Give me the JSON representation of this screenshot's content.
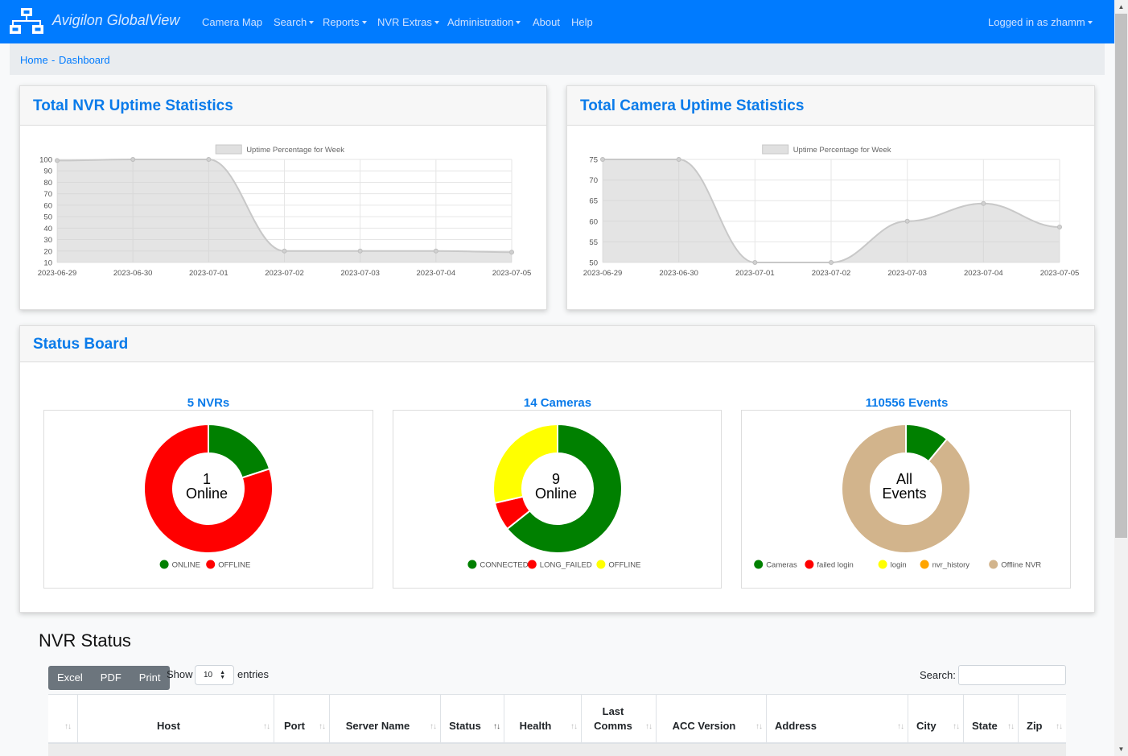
{
  "navbar": {
    "brand": "Avigilon GlobalView",
    "items": [
      {
        "label": "Camera Map",
        "dropdown": false
      },
      {
        "label": "Search",
        "dropdown": true
      },
      {
        "label": "Reports",
        "dropdown": true
      },
      {
        "label": "NVR Extras",
        "dropdown": true
      },
      {
        "label": "Administration",
        "dropdown": true
      },
      {
        "label": "About",
        "dropdown": false
      },
      {
        "label": "Help",
        "dropdown": false
      }
    ],
    "user": "Logged in as zhamm"
  },
  "breadcrumb": {
    "home": "Home",
    "separator": "-",
    "current": "Dashboard"
  },
  "nvr_uptime": {
    "title": "Total NVR Uptime Statistics"
  },
  "camera_uptime": {
    "title": "Total Camera Uptime Statistics"
  },
  "status_board": {
    "title": "Status Board",
    "nvrs": {
      "title": "5 NVRs",
      "center_line1": "1",
      "center_line2": "Online"
    },
    "cameras": {
      "title": "14 Cameras",
      "center_line1": "9",
      "center_line2": "Online"
    },
    "events": {
      "title": "110556 Events",
      "center_line1": "All",
      "center_line2": "Events"
    }
  },
  "nvr_status": {
    "title": "NVR Status",
    "buttons": [
      "Excel",
      "PDF",
      "Print"
    ],
    "show_label": "Show",
    "entries_value": "10",
    "entries_label": "entries",
    "search_label": "Search:",
    "columns": [
      "",
      "Host",
      "Port",
      "Server Name",
      "Status",
      "Health",
      "Last Comms",
      "ACC Version",
      "Address",
      "City",
      "State",
      "Zip"
    ]
  },
  "colors": {
    "navbar": "#007bff",
    "title_blue": "#0a7bea",
    "online_green": "#008000",
    "offline_red": "#ff0000",
    "yellow": "#ffff00",
    "orange": "#ffa500",
    "tan": "#d2b48c"
  },
  "chart_data": [
    {
      "type": "area",
      "title": "Total NVR Uptime Statistics",
      "legend": "Uptime Percentage for Week",
      "legend_position": "top",
      "grid": true,
      "x": [
        "2023-06-29",
        "2023-06-30",
        "2023-07-01",
        "2023-07-02",
        "2023-07-03",
        "2023-07-04",
        "2023-07-05"
      ],
      "values": [
        99,
        100,
        100,
        20,
        20,
        20,
        19
      ],
      "yticks": [
        10,
        20,
        30,
        40,
        50,
        60,
        70,
        80,
        90,
        100
      ],
      "ylim": [
        10,
        100
      ]
    },
    {
      "type": "area",
      "title": "Total Camera Uptime Statistics",
      "legend": "Uptime Percentage for Week",
      "legend_position": "top",
      "grid": true,
      "x": [
        "2023-06-29",
        "2023-06-30",
        "2023-07-01",
        "2023-07-02",
        "2023-07-03",
        "2023-07-04",
        "2023-07-05"
      ],
      "values": [
        75,
        75,
        50,
        50,
        60,
        64.3,
        58.6
      ],
      "yticks": [
        50,
        55,
        60,
        65,
        70,
        75
      ],
      "ylim": [
        50,
        75
      ]
    },
    {
      "type": "pie",
      "title": "5 NVRs",
      "legend_position": "bottom",
      "slices": [
        {
          "label": "ONLINE",
          "value": 1,
          "color": "#008000"
        },
        {
          "label": "OFFLINE",
          "value": 4,
          "color": "#ff0000"
        }
      ]
    },
    {
      "type": "pie",
      "title": "14 Cameras",
      "legend_position": "bottom",
      "slices": [
        {
          "label": "CONNECTED",
          "value": 9,
          "color": "#008000"
        },
        {
          "label": "LONG_FAILED",
          "value": 1,
          "color": "#ff0000"
        },
        {
          "label": "OFFLINE",
          "value": 4,
          "color": "#ffff00"
        }
      ]
    },
    {
      "type": "pie",
      "title": "110556 Events",
      "legend_position": "bottom",
      "slices": [
        {
          "label": "Cameras",
          "value": 11,
          "color": "#008000"
        },
        {
          "label": "failed login",
          "value": 0,
          "color": "#ff0000"
        },
        {
          "label": "login",
          "value": 0,
          "color": "#ffff00"
        },
        {
          "label": "nvr_history",
          "value": 0,
          "color": "#ffa500"
        },
        {
          "label": "Offline NVR",
          "value": 89,
          "color": "#d2b48c"
        }
      ]
    }
  ]
}
